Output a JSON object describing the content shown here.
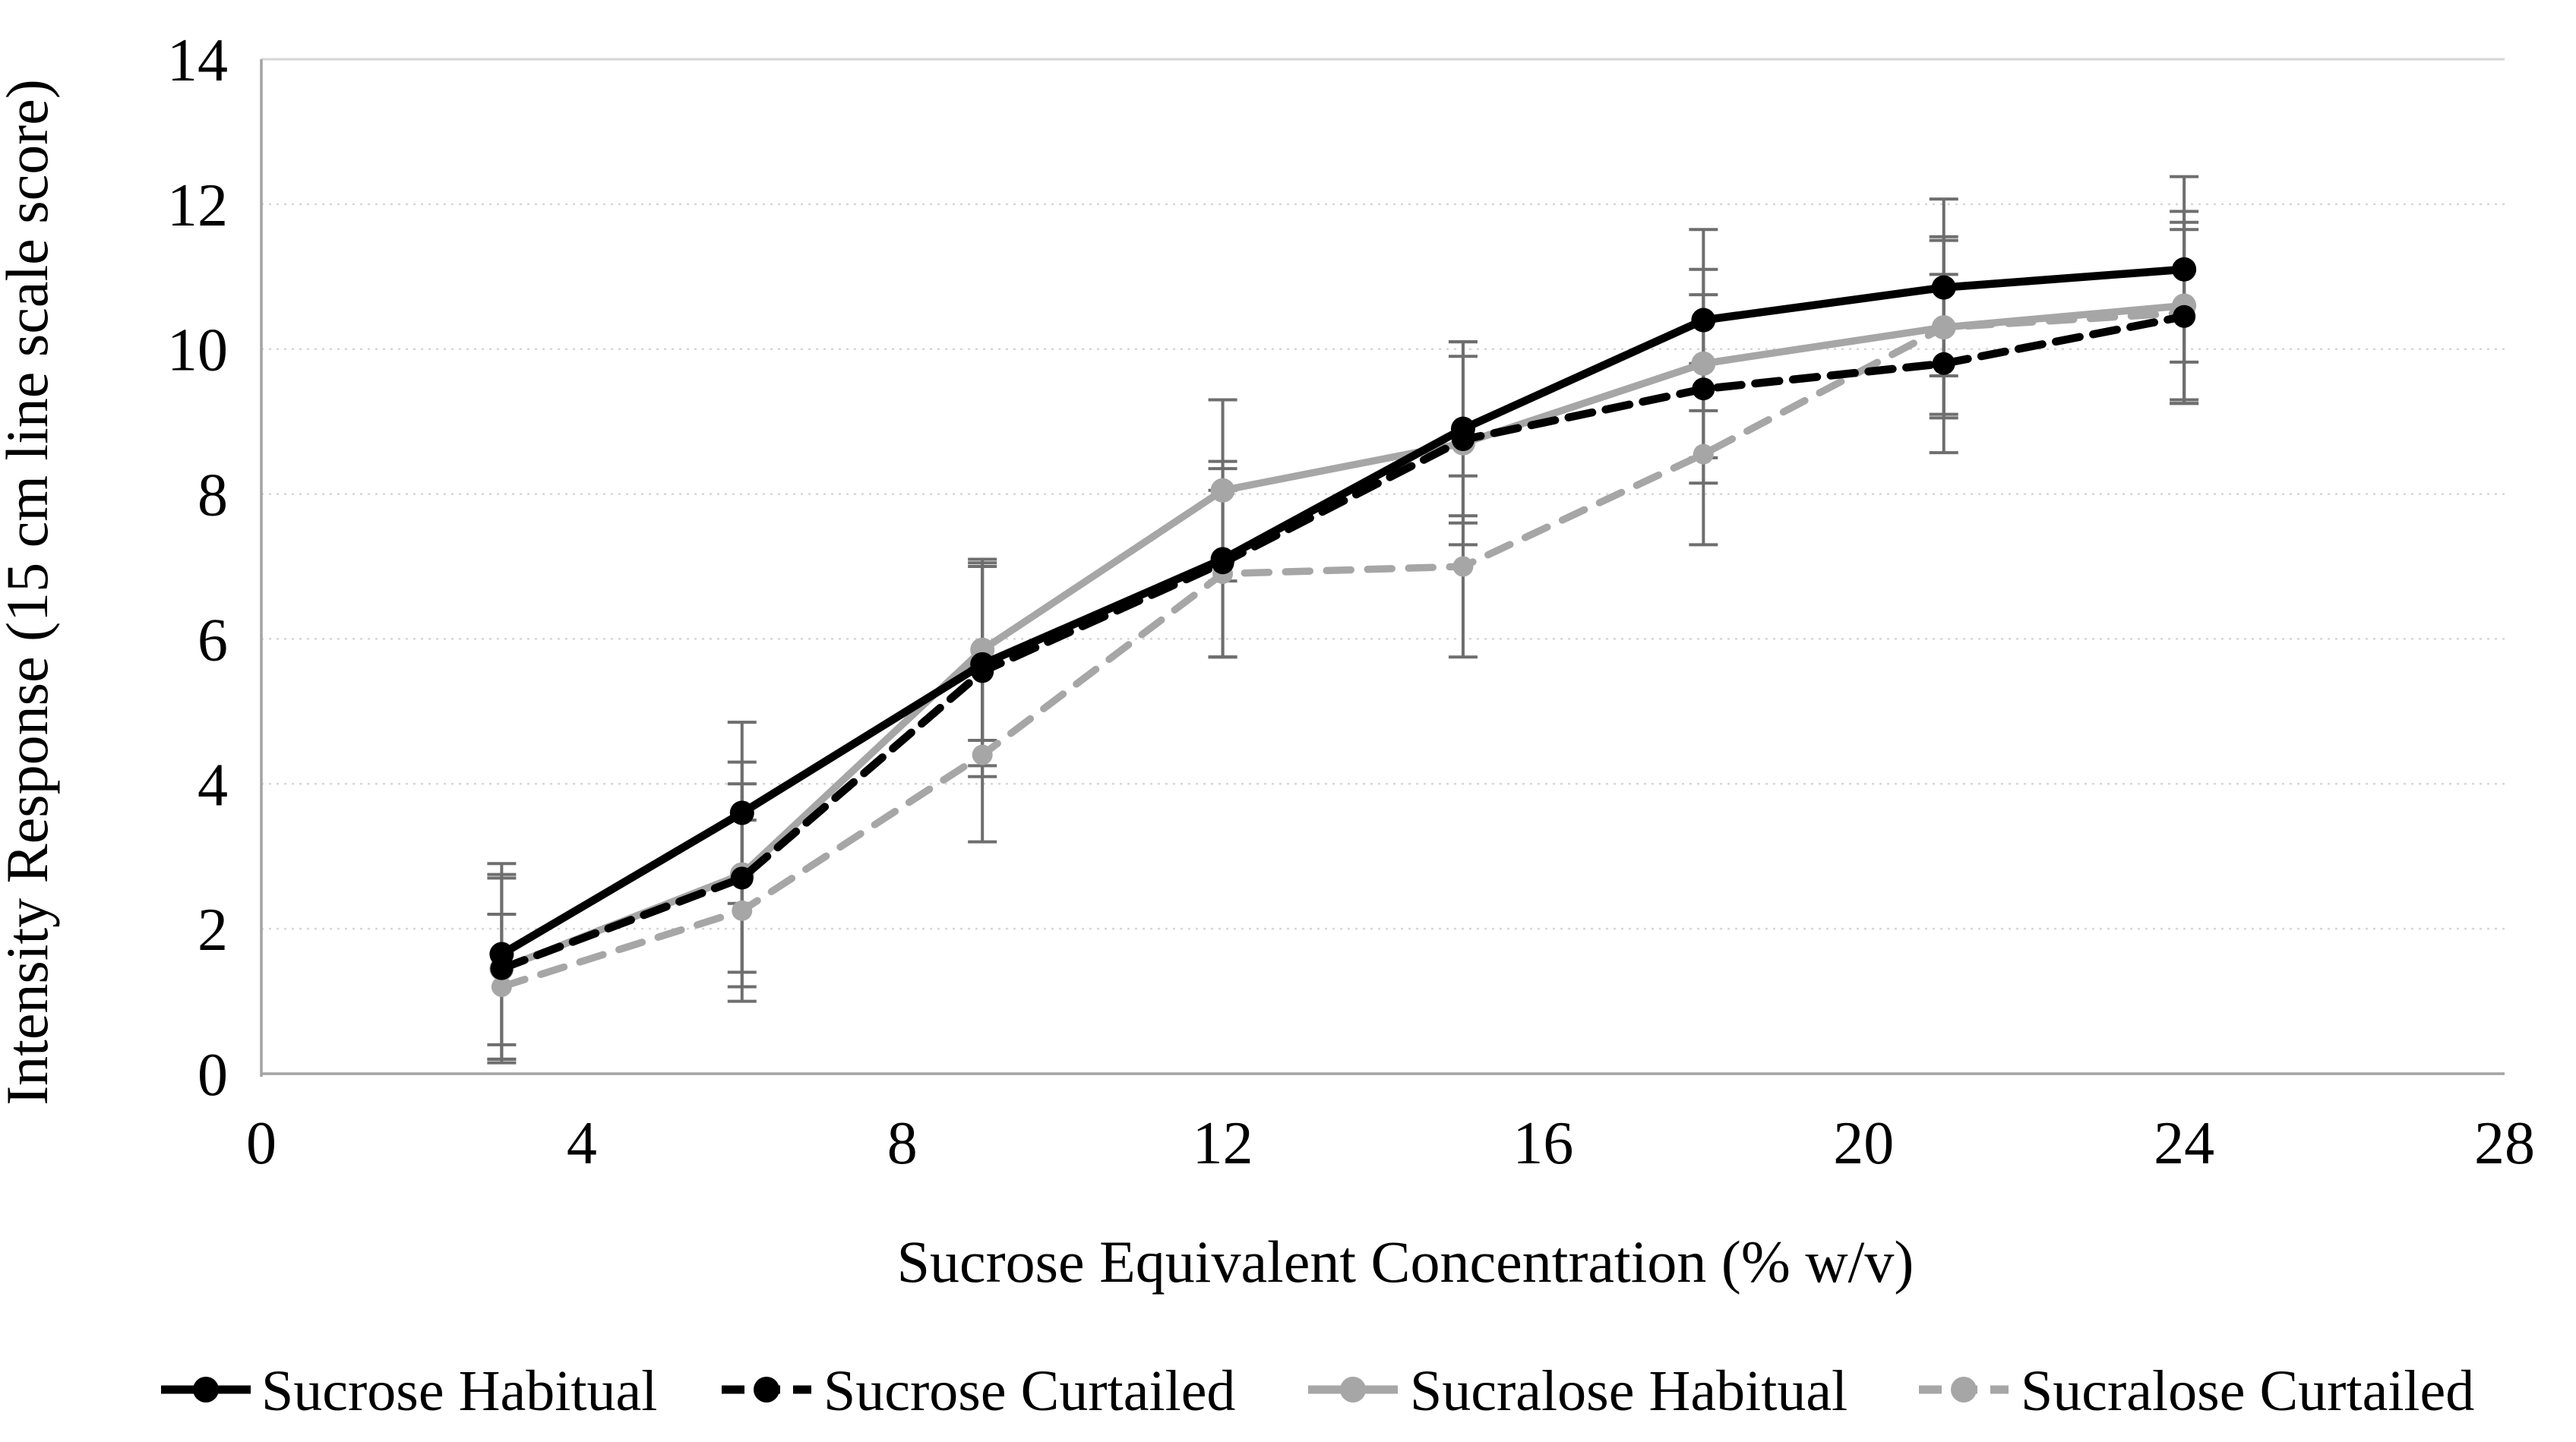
{
  "chart_data": {
    "type": "line",
    "title": "",
    "xlabel": "Sucrose Equivalent Concentration (% w/v)",
    "ylabel": "Intensity Response (15 cm line scale score)",
    "x": [
      3,
      6,
      9,
      12,
      15,
      18,
      21,
      24
    ],
    "xlim": [
      0,
      28
    ],
    "ylim": [
      0,
      14
    ],
    "x_ticks": [
      0,
      4,
      8,
      12,
      16,
      20,
      24,
      28
    ],
    "y_ticks": [
      0,
      2,
      4,
      6,
      8,
      10,
      12,
      14
    ],
    "grid": "horizontal-dotted",
    "legend_position": "bottom",
    "error_bar_color": "#6E6E6E",
    "series": [
      {
        "name": "Sucrose Habitual",
        "color": "#000000",
        "line_style": "solid",
        "marker": "circle",
        "values": [
          1.65,
          3.6,
          5.65,
          7.1,
          8.9,
          10.4,
          10.85,
          11.1
        ],
        "error": [
          1.25,
          1.25,
          1.4,
          1.35,
          1.2,
          1.25,
          1.22,
          1.28
        ]
      },
      {
        "name": "Sucrose Curtailed",
        "color": "#000000",
        "line_style": "dashed",
        "marker": "circle",
        "values": [
          1.45,
          2.7,
          5.55,
          7.05,
          8.75,
          9.45,
          9.8,
          10.45
        ],
        "error": [
          1.3,
          1.3,
          1.45,
          1.3,
          1.15,
          1.3,
          1.23,
          1.2
        ]
      },
      {
        "name": "Sucralose Habitual",
        "color": "#A6A6A6",
        "line_style": "solid",
        "marker": "circle",
        "values": [
          1.45,
          2.75,
          5.85,
          8.05,
          8.7,
          9.8,
          10.3,
          10.6
        ],
        "error": [
          1.25,
          1.55,
          1.25,
          1.25,
          1.4,
          1.3,
          1.25,
          1.3
        ]
      },
      {
        "name": "Sucralose Curtailed",
        "color": "#A6A6A6",
        "line_style": "dashed",
        "marker": "circle",
        "values": [
          1.2,
          2.25,
          4.4,
          6.9,
          7.0,
          8.55,
          10.3,
          10.5
        ],
        "error": [
          1.0,
          1.25,
          1.2,
          1.15,
          1.25,
          1.25,
          1.2,
          1.25
        ]
      }
    ]
  }
}
